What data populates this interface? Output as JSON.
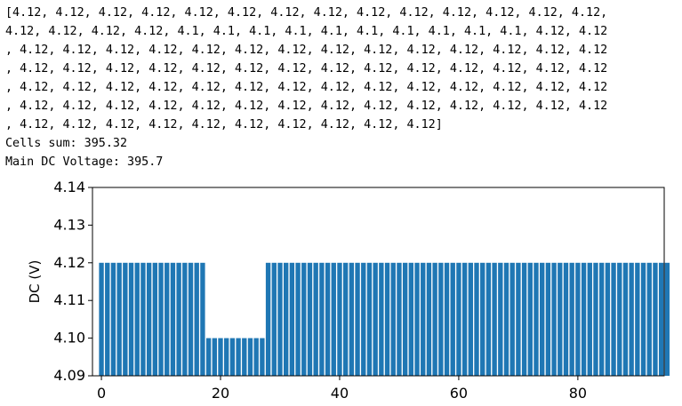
{
  "output": {
    "list_lines": [
      "[4.12, 4.12, 4.12, 4.12, 4.12, 4.12, 4.12, 4.12, 4.12, 4.12, 4.12, 4.12, 4.12, 4.12,",
      "4.12, 4.12, 4.12, 4.12, 4.1, 4.1, 4.1, 4.1, 4.1, 4.1, 4.1, 4.1, 4.1, 4.1, 4.12, 4.12",
      ", 4.12, 4.12, 4.12, 4.12, 4.12, 4.12, 4.12, 4.12, 4.12, 4.12, 4.12, 4.12, 4.12, 4.12",
      ", 4.12, 4.12, 4.12, 4.12, 4.12, 4.12, 4.12, 4.12, 4.12, 4.12, 4.12, 4.12, 4.12, 4.12",
      ", 4.12, 4.12, 4.12, 4.12, 4.12, 4.12, 4.12, 4.12, 4.12, 4.12, 4.12, 4.12, 4.12, 4.12",
      ", 4.12, 4.12, 4.12, 4.12, 4.12, 4.12, 4.12, 4.12, 4.12, 4.12, 4.12, 4.12, 4.12, 4.12",
      ", 4.12, 4.12, 4.12, 4.12, 4.12, 4.12, 4.12, 4.12, 4.12, 4.12]"
    ],
    "cells_sum": "Cells sum: 395.32",
    "main_dc_voltage": "Main DC Voltage: 395.7"
  },
  "chart_data": {
    "type": "bar",
    "title": "",
    "xlabel": "",
    "ylabel": "DC (V)",
    "x": [
      0,
      1,
      2,
      3,
      4,
      5,
      6,
      7,
      8,
      9,
      10,
      11,
      12,
      13,
      14,
      15,
      16,
      17,
      18,
      19,
      20,
      21,
      22,
      23,
      24,
      25,
      26,
      27,
      28,
      29,
      30,
      31,
      32,
      33,
      34,
      35,
      36,
      37,
      38,
      39,
      40,
      41,
      42,
      43,
      44,
      45,
      46,
      47,
      48,
      49,
      50,
      51,
      52,
      53,
      54,
      55,
      56,
      57,
      58,
      59,
      60,
      61,
      62,
      63,
      64,
      65,
      66,
      67,
      67,
      68,
      69,
      70,
      71,
      72,
      73,
      74,
      75,
      76,
      77,
      78,
      79,
      80,
      81,
      82,
      83,
      84,
      85,
      86,
      87,
      88,
      89,
      90,
      91,
      92,
      93,
      94
    ],
    "values": [
      4.12,
      4.12,
      4.12,
      4.12,
      4.12,
      4.12,
      4.12,
      4.12,
      4.12,
      4.12,
      4.12,
      4.12,
      4.12,
      4.12,
      4.12,
      4.12,
      4.12,
      4.12,
      4.1,
      4.1,
      4.1,
      4.1,
      4.1,
      4.1,
      4.1,
      4.1,
      4.1,
      4.1,
      4.12,
      4.12,
      4.12,
      4.12,
      4.12,
      4.12,
      4.12,
      4.12,
      4.12,
      4.12,
      4.12,
      4.12,
      4.12,
      4.12,
      4.12,
      4.12,
      4.12,
      4.12,
      4.12,
      4.12,
      4.12,
      4.12,
      4.12,
      4.12,
      4.12,
      4.12,
      4.12,
      4.12,
      4.12,
      4.12,
      4.12,
      4.12,
      4.12,
      4.12,
      4.12,
      4.12,
      4.12,
      4.12,
      4.12,
      4.12,
      4.12,
      4.12,
      4.12,
      4.12,
      4.12,
      4.12,
      4.12,
      4.12,
      4.12,
      4.12,
      4.12,
      4.12,
      4.12,
      4.12,
      4.12,
      4.12,
      4.12,
      4.12,
      4.12,
      4.12,
      4.12,
      4.12,
      4.12,
      4.12,
      4.12,
      4.12,
      4.12,
      4.12
    ],
    "xlim": [
      -1.5,
      94.5
    ],
    "ylim": [
      4.09,
      4.14
    ],
    "x_ticks": [
      0,
      20,
      40,
      60,
      80
    ],
    "x_tick_labels": [
      "0",
      "20",
      "40",
      "60",
      "80"
    ],
    "y_ticks": [
      4.09,
      4.1,
      4.11,
      4.12,
      4.13,
      4.14
    ],
    "y_tick_labels": [
      "4.09",
      "4.10",
      "4.11",
      "4.12",
      "4.13",
      "4.14"
    ],
    "bar_color": "#1f77b4",
    "grid": false
  }
}
